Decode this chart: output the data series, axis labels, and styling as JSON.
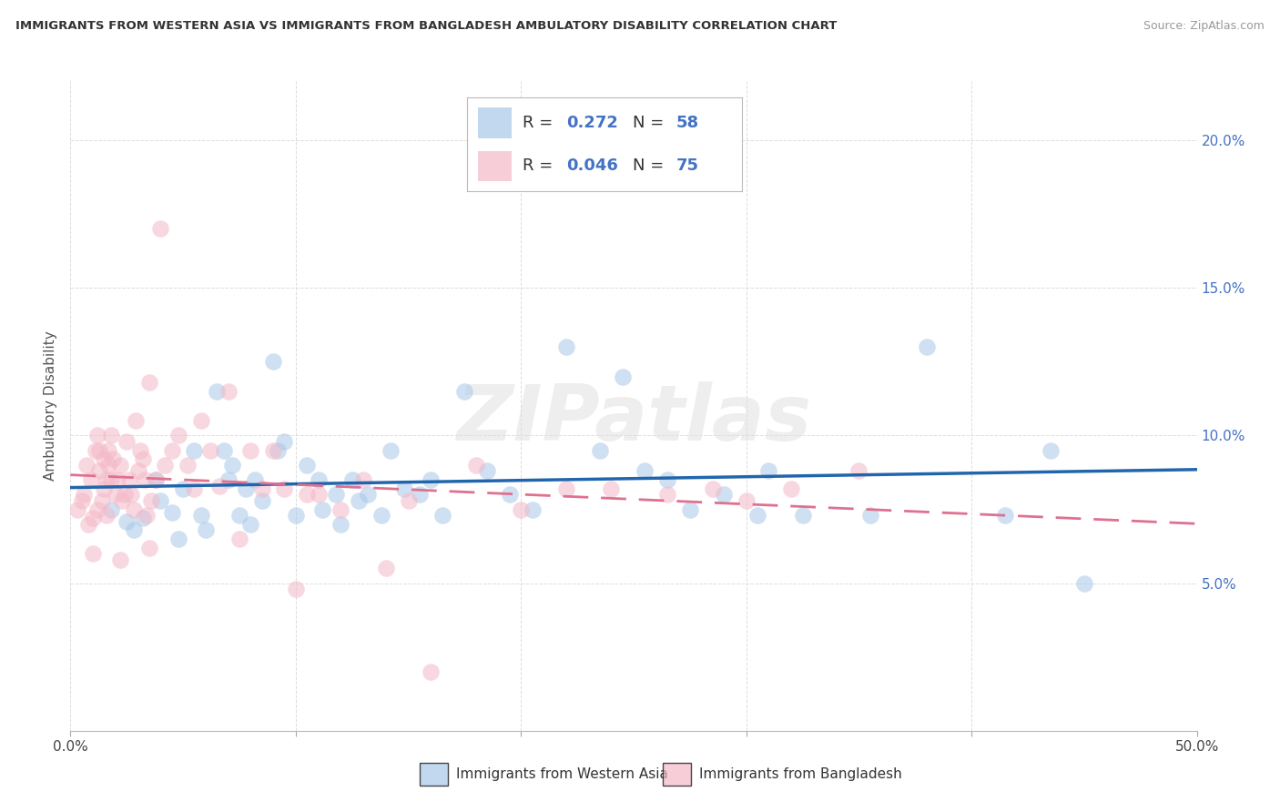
{
  "title": "IMMIGRANTS FROM WESTERN ASIA VS IMMIGRANTS FROM BANGLADESH AMBULATORY DISABILITY CORRELATION CHART",
  "source": "Source: ZipAtlas.com",
  "ylabel": "Ambulatory Disability",
  "blue_color": "#a8c8e8",
  "pink_color": "#f4b8c8",
  "blue_line_color": "#2166ac",
  "pink_line_color": "#e07090",
  "watermark": "ZIPatlas",
  "r_blue": "0.272",
  "n_blue": "58",
  "r_pink": "0.046",
  "n_pink": "75",
  "legend_label_blue": "Immigrants from Western Asia",
  "legend_label_pink": "Immigrants from Bangladesh",
  "legend_text_color": "#4472C4",
  "xlim": [
    0.0,
    0.5
  ],
  "ylim": [
    0.0,
    0.22
  ],
  "x_ticks": [
    0.0,
    0.1,
    0.2,
    0.3,
    0.4,
    0.5
  ],
  "x_tick_labels": [
    "0.0%",
    "",
    "",
    "",
    "",
    "50.0%"
  ],
  "y_ticks": [
    0.05,
    0.1,
    0.15,
    0.2
  ],
  "y_tick_labels": [
    "5.0%",
    "10.0%",
    "15.0%",
    "20.0%"
  ],
  "blue_x": [
    0.018,
    0.025,
    0.028,
    0.032,
    0.038,
    0.04,
    0.045,
    0.048,
    0.05,
    0.055,
    0.058,
    0.06,
    0.065,
    0.068,
    0.07,
    0.072,
    0.075,
    0.078,
    0.08,
    0.082,
    0.085,
    0.09,
    0.092,
    0.095,
    0.1,
    0.105,
    0.11,
    0.112,
    0.118,
    0.12,
    0.125,
    0.128,
    0.132,
    0.138,
    0.142,
    0.148,
    0.155,
    0.16,
    0.165,
    0.175,
    0.185,
    0.195,
    0.205,
    0.22,
    0.235,
    0.245,
    0.255,
    0.265,
    0.275,
    0.29,
    0.305,
    0.31,
    0.325,
    0.355,
    0.38,
    0.415,
    0.435,
    0.45
  ],
  "blue_y": [
    0.075,
    0.071,
    0.068,
    0.072,
    0.085,
    0.078,
    0.074,
    0.065,
    0.082,
    0.095,
    0.073,
    0.068,
    0.115,
    0.095,
    0.085,
    0.09,
    0.073,
    0.082,
    0.07,
    0.085,
    0.078,
    0.125,
    0.095,
    0.098,
    0.073,
    0.09,
    0.085,
    0.075,
    0.08,
    0.07,
    0.085,
    0.078,
    0.08,
    0.073,
    0.095,
    0.082,
    0.08,
    0.085,
    0.073,
    0.115,
    0.088,
    0.08,
    0.075,
    0.13,
    0.095,
    0.12,
    0.088,
    0.085,
    0.075,
    0.08,
    0.073,
    0.088,
    0.073,
    0.073,
    0.13,
    0.073,
    0.095,
    0.05
  ],
  "pink_x": [
    0.003,
    0.005,
    0.006,
    0.007,
    0.008,
    0.009,
    0.01,
    0.011,
    0.012,
    0.012,
    0.013,
    0.013,
    0.014,
    0.015,
    0.015,
    0.016,
    0.016,
    0.017,
    0.017,
    0.018,
    0.018,
    0.019,
    0.02,
    0.021,
    0.022,
    0.023,
    0.024,
    0.025,
    0.026,
    0.027,
    0.028,
    0.029,
    0.03,
    0.031,
    0.032,
    0.033,
    0.034,
    0.035,
    0.036,
    0.038,
    0.04,
    0.042,
    0.045,
    0.048,
    0.052,
    0.055,
    0.058,
    0.062,
    0.066,
    0.07,
    0.075,
    0.08,
    0.085,
    0.09,
    0.095,
    0.1,
    0.105,
    0.11,
    0.12,
    0.13,
    0.14,
    0.15,
    0.16,
    0.18,
    0.2,
    0.22,
    0.24,
    0.265,
    0.285,
    0.3,
    0.32,
    0.35,
    0.01,
    0.022,
    0.035
  ],
  "pink_y": [
    0.075,
    0.078,
    0.08,
    0.09,
    0.07,
    0.085,
    0.072,
    0.095,
    0.1,
    0.075,
    0.088,
    0.095,
    0.078,
    0.092,
    0.082,
    0.085,
    0.073,
    0.09,
    0.095,
    0.1,
    0.085,
    0.092,
    0.08,
    0.085,
    0.09,
    0.078,
    0.08,
    0.098,
    0.085,
    0.08,
    0.075,
    0.105,
    0.088,
    0.095,
    0.092,
    0.085,
    0.073,
    0.118,
    0.078,
    0.085,
    0.17,
    0.09,
    0.095,
    0.1,
    0.09,
    0.082,
    0.105,
    0.095,
    0.083,
    0.115,
    0.065,
    0.095,
    0.082,
    0.095,
    0.082,
    0.048,
    0.08,
    0.08,
    0.075,
    0.085,
    0.055,
    0.078,
    0.02,
    0.09,
    0.075,
    0.082,
    0.082,
    0.08,
    0.082,
    0.078,
    0.082,
    0.088,
    0.06,
    0.058,
    0.062
  ]
}
